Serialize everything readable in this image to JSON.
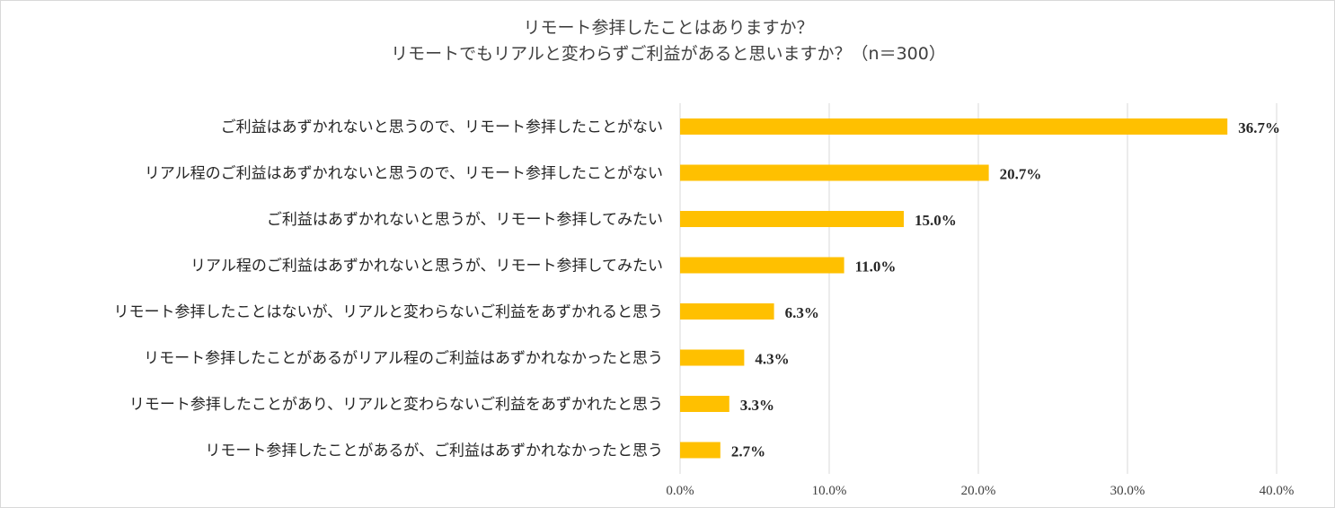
{
  "chart_data": {
    "type": "bar",
    "orientation": "horizontal",
    "title": "リモート参拝したことはありますか？",
    "subtitle": "リモートでもリアルと変わらずご利益があると思いますか？（n＝300）",
    "categories": [
      "ご利益はあずかれないと思うので、リモート参拝したことがない",
      "リアル程のご利益はあずかれないと思うので、リモート参拝したことがない",
      "ご利益はあずかれないと思うが、リモート参拝してみたい",
      "リアル程のご利益はあずかれないと思うが、リモート参拝してみたい",
      "リモート参拝したことはないが、リアルと変わらないご利益をあずかれると思う",
      "リモート参拝したことがあるがリアル程のご利益はあずかれなかったと思う",
      "リモート参拝したことがあり、リアルと変わらないご利益をあずかれたと思う",
      "リモート参拝したことがあるが、ご利益はあずかれなかったと思う"
    ],
    "values": [
      36.7,
      20.7,
      15.0,
      11.0,
      6.3,
      4.3,
      3.3,
      2.7
    ],
    "value_labels": [
      "36.7%",
      "20.7%",
      "15.0%",
      "11.0%",
      "6.3%",
      "4.3%",
      "3.3%",
      "2.7%"
    ],
    "xlim": [
      0,
      40
    ],
    "x_ticks": [
      0,
      10,
      20,
      30,
      40
    ],
    "x_tick_labels": [
      "0.0%",
      "10.0%",
      "20.0%",
      "30.0%",
      "40.0%"
    ],
    "grid": "vertical",
    "bar_color": "#FFC000",
    "grid_color": "#d9d9d9",
    "legend": "none"
  }
}
